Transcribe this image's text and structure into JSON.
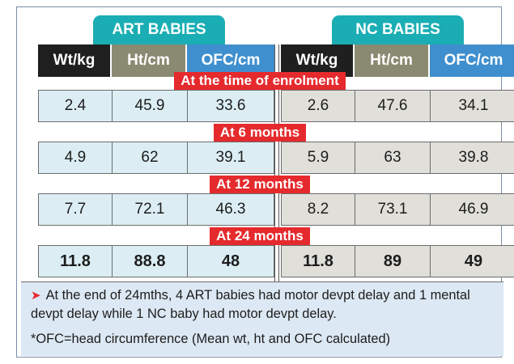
{
  "groups": {
    "art": "ART BABIES",
    "nc": "NC BABIES"
  },
  "columns": [
    "Wt/kg",
    "Ht/cm",
    "OFC/cm"
  ],
  "periods": [
    {
      "label": "At the time of enrolment",
      "art": [
        "2.4",
        "45.9",
        "33.6"
      ],
      "nc": [
        "2.6",
        "47.6",
        "34.1"
      ]
    },
    {
      "label": "At 6 months",
      "art": [
        "4.9",
        "62",
        "39.1"
      ],
      "nc": [
        "5.9",
        "63",
        "39.8"
      ]
    },
    {
      "label": "At 12 months",
      "art": [
        "7.7",
        "72.1",
        "46.3"
      ],
      "nc": [
        "8.2",
        "73.1",
        "46.9"
      ]
    },
    {
      "label": "At 24 months",
      "art": [
        "11.8",
        "88.8",
        "48"
      ],
      "nc": [
        "11.8",
        "89",
        "49"
      ]
    }
  ],
  "notes": {
    "bullet_icon": "arrowhead-icon",
    "line1": "At the end of 24mths, 4 ART babies had motor devpt delay and 1 mental devpt delay while 1 NC baby had motor devpt delay.",
    "line2": "*OFC=head circumference (Mean wt, ht and OFC calculated)"
  },
  "colors": {
    "teal_tag": "#1aaeb4",
    "red_band": "#e52a2d",
    "wt_header": "#1f1f1f",
    "ht_header": "#8a8a72",
    "ofc_header": "#3f8fce",
    "art_cells": "#dceef4",
    "nc_cells": "#e0dfd9",
    "note_bg": "#dce8f3"
  }
}
